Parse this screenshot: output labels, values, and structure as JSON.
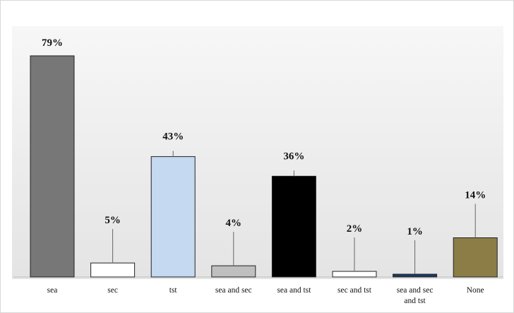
{
  "chart_data": {
    "type": "bar",
    "categories": [
      "sea",
      "sec",
      "tst",
      "sea and sec",
      "sea and tst",
      "sec and tst",
      "sea and sec and tst",
      "None"
    ],
    "category_lines": [
      [
        "sea"
      ],
      [
        "sec"
      ],
      [
        "tst"
      ],
      [
        "sea and sec"
      ],
      [
        "sea and tst"
      ],
      [
        "sec and tst"
      ],
      [
        "sea and sec",
        "and tst"
      ],
      [
        "None"
      ]
    ],
    "values": [
      79,
      5,
      43,
      4,
      36,
      2,
      1,
      14
    ],
    "data_labels": [
      "79%",
      "5%",
      "43%",
      "4%",
      "36%",
      "2%",
      "1%",
      "14%"
    ],
    "colors": [
      "#777777",
      "#ffffff",
      "#c5d9f1",
      "#bfbfbf",
      "#000000",
      "#ffffff",
      "#1f3864",
      "#8c7d47"
    ],
    "unit": "%",
    "ylim": [
      0,
      80
    ],
    "grid": false,
    "legend": "none",
    "title": "",
    "xlabel": "",
    "ylabel": ""
  }
}
